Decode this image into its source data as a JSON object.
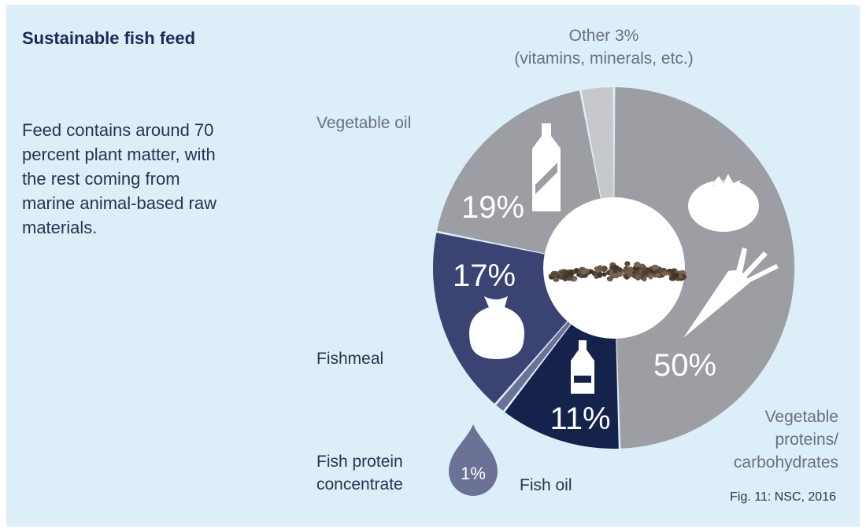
{
  "heading": "Sustainable fish feed",
  "description": "Feed contains around 70 percent plant matter, with the rest coming from marine animal-based raw materials.",
  "caption": "Fig. 11: NSC, 2016",
  "chart_data": {
    "type": "pie",
    "title": "Sustainable fish feed",
    "slices": [
      {
        "name": "Vegetable proteins/carbohydrates",
        "label_lines": [
          "Vegetable",
          "proteins/",
          "carbohydrates"
        ],
        "value": 50,
        "pct_label": "50%",
        "color": "#9d9ea3",
        "icon": "tomato-carrot-icon"
      },
      {
        "name": "Fish oil",
        "label_lines": [
          "Fish oil"
        ],
        "value": 11,
        "pct_label": "11%",
        "color": "#15224b",
        "icon": "bottle-icon"
      },
      {
        "name": "Fish protein concentrate",
        "label_lines": [
          "Fish protein",
          "concentrate"
        ],
        "value": 1,
        "pct_label": "1%",
        "color": "#6c7296",
        "icon": "drop-icon"
      },
      {
        "name": "Fishmeal",
        "label_lines": [
          "Fishmeal"
        ],
        "value": 17,
        "pct_label": "17%",
        "color": "#3b4373",
        "icon": "sack-icon"
      },
      {
        "name": "Vegetable oil",
        "label_lines": [
          "Vegetable oil"
        ],
        "value": 19,
        "pct_label": "19%",
        "color": "#9d9ea3",
        "icon": "oil-bottle-icon"
      },
      {
        "name": "Other",
        "label_lines": [
          "Other 3%",
          "(vitamins, minerals, etc.)"
        ],
        "value": 3,
        "pct_label": "",
        "color": "#c6c8cc",
        "icon": ""
      }
    ],
    "center_image": "fish-feed-pellets-icon",
    "legend": "none"
  }
}
